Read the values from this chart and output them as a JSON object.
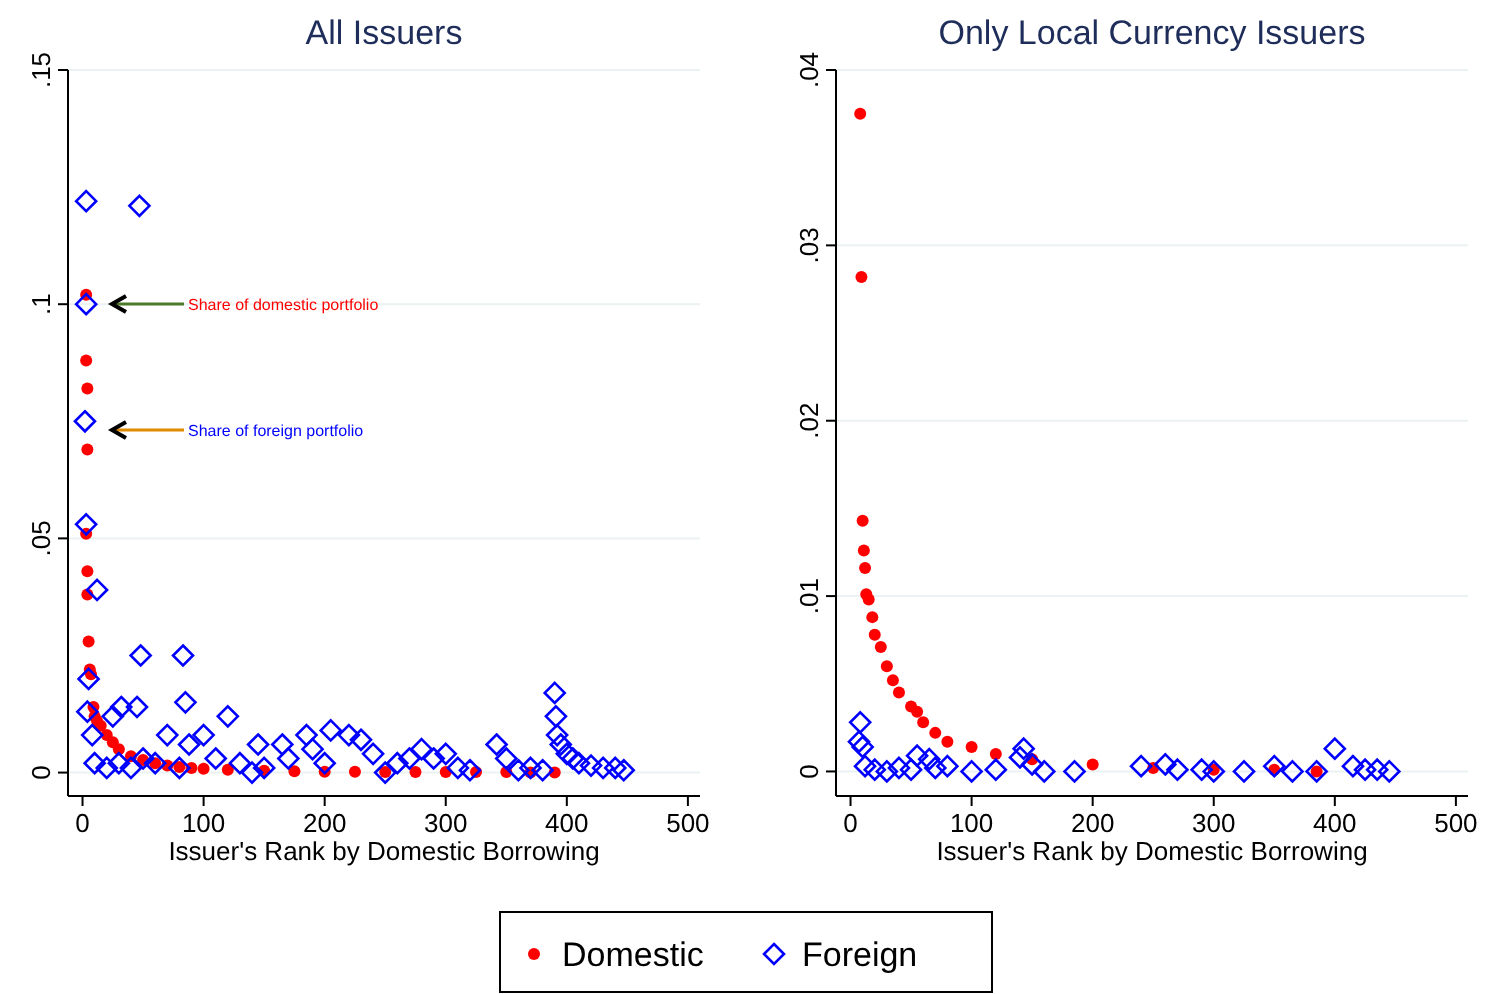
{
  "chart_data": [
    {
      "type": "scatter",
      "title": "All Issuers",
      "xlabel": "Issuer's Rank by Domestic Borrowing",
      "xlim": [
        -12,
        510
      ],
      "xticks": [
        0,
        100,
        200,
        300,
        400,
        500
      ],
      "ylim": [
        -0.005,
        0.15
      ],
      "yticks": [
        0,
        {
          "value": 0.05,
          "label": ".05"
        },
        {
          "value": 0.1,
          "label": ".1"
        },
        {
          "value": 0.15,
          "label": ".15"
        }
      ],
      "grid": "y",
      "legend": "bottom",
      "annotations": [
        "Share of domestic portfolio",
        "Share of foreign portfolio"
      ],
      "series": [
        {
          "name": "Domestic",
          "color": "#ff0000",
          "marker": "circle",
          "x": [
            3,
            3,
            4,
            4,
            3,
            4,
            4,
            5,
            6,
            7,
            9,
            10,
            12,
            15,
            20,
            25,
            30,
            40,
            50,
            60,
            70,
            80,
            90,
            100,
            120,
            150,
            175,
            200,
            225,
            250,
            275,
            300,
            325,
            350,
            370,
            390
          ],
          "values": [
            0.102,
            0.088,
            0.082,
            0.069,
            0.051,
            0.043,
            0.038,
            0.028,
            0.022,
            0.021,
            0.014,
            0.012,
            0.011,
            0.01,
            0.008,
            0.0065,
            0.005,
            0.0035,
            0.0027,
            0.002,
            0.0015,
            0.0012,
            0.001,
            0.0008,
            0.0006,
            0.0004,
            0.0003,
            0.0002,
            0.0002,
            0.0001,
            0.0001,
            0.0001,
            0.0001,
            0.0001,
            0,
            0
          ]
        },
        {
          "name": "Foreign",
          "color": "#0000ff",
          "marker": "diamond",
          "x": [
            3,
            47,
            3,
            2,
            3,
            12,
            5,
            4,
            48,
            83,
            85,
            45,
            32,
            25,
            120,
            8,
            70,
            100,
            205,
            220,
            185,
            230,
            88,
            145,
            165,
            190,
            280,
            300,
            342,
            390,
            391,
            392,
            395,
            400,
            405,
            410,
            420,
            430,
            440,
            447,
            10,
            20,
            30,
            40,
            50,
            60,
            80,
            110,
            130,
            140,
            150,
            170,
            200,
            240,
            250,
            260,
            270,
            290,
            310,
            320,
            350,
            360,
            370,
            380
          ],
          "values": [
            0.122,
            0.121,
            0.1,
            0.075,
            0.053,
            0.039,
            0.02,
            0.013,
            0.025,
            0.025,
            0.015,
            0.014,
            0.014,
            0.012,
            0.012,
            0.008,
            0.008,
            0.008,
            0.009,
            0.008,
            0.008,
            0.007,
            0.006,
            0.006,
            0.006,
            0.005,
            0.005,
            0.004,
            0.006,
            0.017,
            0.012,
            0.008,
            0.006,
            0.004,
            0.003,
            0.002,
            0.0015,
            0.001,
            0.001,
            0.0005,
            0.002,
            0.001,
            0.002,
            0.001,
            0.003,
            0.002,
            0.001,
            0.003,
            0.002,
            0,
            0.001,
            0.003,
            0.002,
            0.004,
            0,
            0.002,
            0.003,
            0.003,
            0.001,
            0.0005,
            0.003,
            0.0005,
            0.001,
            0.0005
          ]
        }
      ]
    },
    {
      "type": "scatter",
      "title": "Only Local Currency Issuers",
      "xlabel": "Issuer's Rank by Domestic Borrowing",
      "xlim": [
        -12,
        510
      ],
      "xticks": [
        0,
        100,
        200,
        300,
        400,
        500
      ],
      "ylim": [
        -0.0014,
        0.04
      ],
      "yticks": [
        0,
        {
          "value": 0.01,
          "label": ".01"
        },
        {
          "value": 0.02,
          "label": ".02"
        },
        {
          "value": 0.03,
          "label": ".03"
        },
        {
          "value": 0.04,
          "label": ".04"
        }
      ],
      "grid": "y",
      "series": [
        {
          "color": "#ff0000",
          "marker": "circle",
          "x": [
            8,
            9,
            10,
            11,
            12,
            13,
            15,
            18,
            20,
            25,
            30,
            35,
            40,
            50,
            55,
            60,
            70,
            80,
            100,
            120,
            150,
            200,
            250,
            300,
            350,
            385
          ],
          "values": [
            0.0375,
            0.0282,
            0.0143,
            0.0126,
            0.0116,
            0.0101,
            0.0098,
            0.0088,
            0.0078,
            0.0071,
            0.006,
            0.0052,
            0.0045,
            0.0037,
            0.0034,
            0.0028,
            0.0022,
            0.0017,
            0.0014,
            0.001,
            0.0007,
            0.0004,
            0.0002,
            0.0001,
            0.0001,
            0
          ]
        },
        {
          "color": "#0000ff",
          "marker": "diamond",
          "x": [
            8,
            7,
            10,
            12,
            20,
            30,
            40,
            50,
            55,
            65,
            70,
            80,
            100,
            120,
            140,
            143,
            150,
            160,
            185,
            240,
            260,
            270,
            290,
            300,
            325,
            350,
            365,
            385,
            400,
            415,
            425,
            435,
            445
          ],
          "values": [
            0.0028,
            0.0017,
            0.0014,
            0.0003,
            0.0001,
            0,
            0.0002,
            0.0001,
            0.0009,
            0.0007,
            0.0002,
            0.0003,
            0,
            0.0001,
            0.0008,
            0.0013,
            0.0004,
            0,
            0,
            0.0003,
            0.0004,
            0.0001,
            0.0001,
            0,
            0,
            0.0003,
            0,
            0,
            0.0013,
            0.0003,
            0.0001,
            0.0001,
            0
          ]
        }
      ]
    }
  ]
}
